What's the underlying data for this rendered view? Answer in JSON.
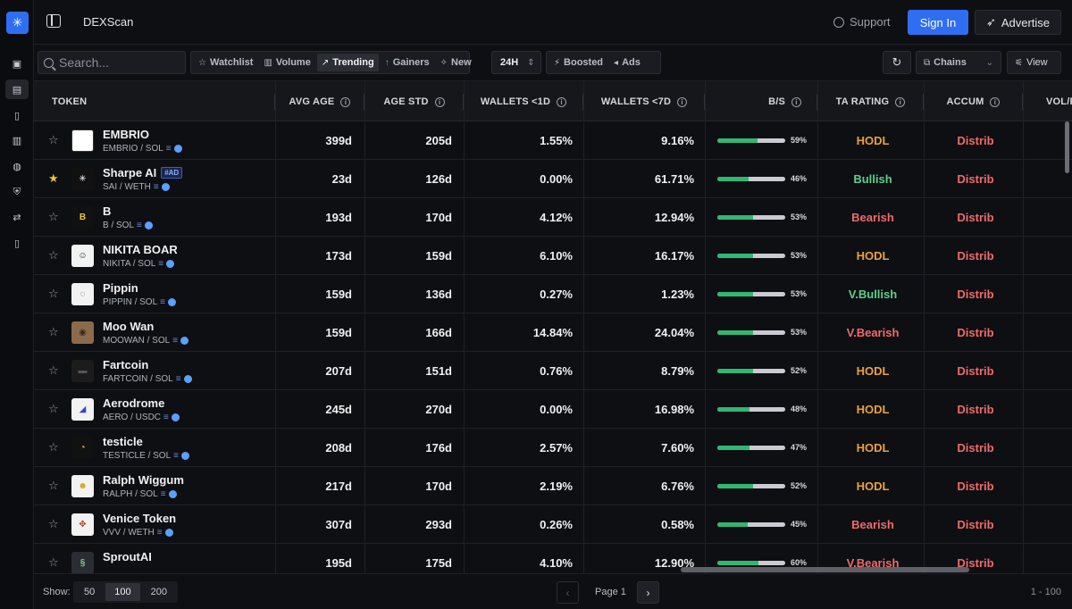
{
  "app": {
    "title": "DEXScan"
  },
  "header": {
    "support_label": "Support",
    "signin_label": "Sign In",
    "advertise_label": "Advertise"
  },
  "filters": {
    "search_placeholder": "Search...",
    "tabs": [
      {
        "label": "Watchlist",
        "glyph": "☆"
      },
      {
        "label": "Volume",
        "glyph": "▥"
      },
      {
        "label": "Trending",
        "glyph": "↗"
      },
      {
        "label": "Gainers",
        "glyph": "↑"
      },
      {
        "label": "New",
        "glyph": "✧"
      }
    ],
    "timeframe": "24H",
    "boosted_label": "Boosted",
    "ads_label": "Ads",
    "chains_label": "Chains",
    "view_label": "View"
  },
  "columns": {
    "token": "TOKEN",
    "avg_age": "AVG AGE",
    "age_std": "AGE STD",
    "wallets_1d": "WALLETS <1D",
    "wallets_7d": "WALLETS <7D",
    "bs": "B/S",
    "ta_rating": "TA RATING",
    "accum": "ACCUM",
    "vol": "VOL/F"
  },
  "colors": {
    "hodl": "#e9a23b",
    "bullish": "#5ccf8a",
    "bearish": "#ee6b6b",
    "accent": "#2f6ef2"
  },
  "rows": [
    {
      "name": "EMBRIO",
      "pair": "EMBRIO / SOL",
      "ad": "",
      "fav": false,
      "avatar": "",
      "avatar_bg": "#ffffff",
      "avatar_fg": "#000000",
      "avg_age": "399d",
      "age_std": "205d",
      "w1d": "1.55%",
      "w7d": "9.16%",
      "bs": 59,
      "bs_label": "59%",
      "ta": "HODL",
      "ta_kind": "hodl",
      "accum": "Distrib"
    },
    {
      "name": "Sharpe AI",
      "pair": "SAI / WETH",
      "ad": "#AD",
      "fav": true,
      "avatar": "✳",
      "avatar_bg": "#111111",
      "avatar_fg": "#ffffff",
      "avg_age": "23d",
      "age_std": "126d",
      "w1d": "0.00%",
      "w7d": "61.71%",
      "bs": 46,
      "bs_label": "46%",
      "ta": "Bullish",
      "ta_kind": "bullish",
      "accum": "Distrib"
    },
    {
      "name": "B",
      "pair": "B / SOL",
      "ad": "",
      "fav": false,
      "avatar": "B",
      "avatar_bg": "#111111",
      "avatar_fg": "#f1c232",
      "avg_age": "193d",
      "age_std": "170d",
      "w1d": "4.12%",
      "w7d": "12.94%",
      "bs": 53,
      "bs_label": "53%",
      "ta": "Bearish",
      "ta_kind": "bearish",
      "accum": "Distrib"
    },
    {
      "name": "NIKITA BOAR",
      "pair": "NIKITA / SOL",
      "ad": "",
      "fav": false,
      "avatar": "☺",
      "avatar_bg": "#f2f2f2",
      "avatar_fg": "#222222",
      "avg_age": "173d",
      "age_std": "159d",
      "w1d": "6.10%",
      "w7d": "16.17%",
      "bs": 53,
      "bs_label": "53%",
      "ta": "HODL",
      "ta_kind": "hodl",
      "accum": "Distrib"
    },
    {
      "name": "Pippin",
      "pair": "PIPPIN / SOL",
      "ad": "",
      "fav": false,
      "avatar": "◌",
      "avatar_bg": "#f2f2f2",
      "avatar_fg": "#555555",
      "avg_age": "159d",
      "age_std": "136d",
      "w1d": "0.27%",
      "w7d": "1.23%",
      "bs": 53,
      "bs_label": "53%",
      "ta": "V.Bullish",
      "ta_kind": "bullish",
      "accum": "Distrib"
    },
    {
      "name": "Moo Wan",
      "pair": "MOOWAN / SOL",
      "ad": "",
      "fav": false,
      "avatar": "◉",
      "avatar_bg": "#8c6b4c",
      "avatar_fg": "#3a2a1a",
      "avg_age": "159d",
      "age_std": "166d",
      "w1d": "14.84%",
      "w7d": "24.04%",
      "bs": 53,
      "bs_label": "53%",
      "ta": "V.Bearish",
      "ta_kind": "bearish",
      "accum": "Distrib"
    },
    {
      "name": "Fartcoin",
      "pair": "FARTCOIN / SOL",
      "ad": "",
      "fav": false,
      "avatar": "▬",
      "avatar_bg": "#1c1c1c",
      "avatar_fg": "#555555",
      "avg_age": "207d",
      "age_std": "151d",
      "w1d": "0.76%",
      "w7d": "8.79%",
      "bs": 52,
      "bs_label": "52%",
      "ta": "HODL",
      "ta_kind": "hodl",
      "accum": "Distrib"
    },
    {
      "name": "Aerodrome",
      "pair": "AERO / USDC",
      "ad": "",
      "fav": false,
      "avatar": "◢",
      "avatar_bg": "#f2f2f2",
      "avatar_fg": "#3a46c8",
      "avg_age": "245d",
      "age_std": "270d",
      "w1d": "0.00%",
      "w7d": "16.98%",
      "bs": 48,
      "bs_label": "48%",
      "ta": "HODL",
      "ta_kind": "hodl",
      "accum": "Distrib"
    },
    {
      "name": "testicle",
      "pair": "TESTICLE / SOL",
      "ad": "",
      "fav": false,
      "avatar": "◔",
      "avatar_bg": "#111111",
      "avatar_fg": "#f1c232",
      "avg_age": "208d",
      "age_std": "176d",
      "w1d": "2.57%",
      "w7d": "7.60%",
      "bs": 47,
      "bs_label": "47%",
      "ta": "HODL",
      "ta_kind": "hodl",
      "accum": "Distrib"
    },
    {
      "name": "Ralph Wiggum",
      "pair": "RALPH / SOL",
      "ad": "",
      "fav": false,
      "avatar": "☻",
      "avatar_bg": "#f2f2f2",
      "avatar_fg": "#d4a21c",
      "avg_age": "217d",
      "age_std": "170d",
      "w1d": "2.19%",
      "w7d": "6.76%",
      "bs": 52,
      "bs_label": "52%",
      "ta": "HODL",
      "ta_kind": "hodl",
      "accum": "Distrib"
    },
    {
      "name": "Venice Token",
      "pair": "VVV / WETH",
      "ad": "",
      "fav": false,
      "avatar": "✥",
      "avatar_bg": "#f2f2f2",
      "avatar_fg": "#b0452a",
      "avg_age": "307d",
      "age_std": "293d",
      "w1d": "0.26%",
      "w7d": "0.58%",
      "bs": 45,
      "bs_label": "45%",
      "ta": "Bearish",
      "ta_kind": "bearish",
      "accum": "Distrib"
    },
    {
      "name": "SproutAI",
      "pair": "",
      "ad": "",
      "fav": false,
      "avatar": "§",
      "avatar_bg": "#2a2d33",
      "avatar_fg": "#7fd18e",
      "avg_age": "195d",
      "age_std": "175d",
      "w1d": "4.10%",
      "w7d": "12.90%",
      "bs": 60,
      "bs_label": "60%",
      "ta": "V.Bearish",
      "ta_kind": "bearish",
      "accum": "Distrib"
    }
  ],
  "footer": {
    "show_label": "Show:",
    "sizes": [
      "50",
      "100",
      "200"
    ],
    "page_label": "Page 1",
    "range": "1 - 100",
    "prev": "‹",
    "next": "›"
  }
}
